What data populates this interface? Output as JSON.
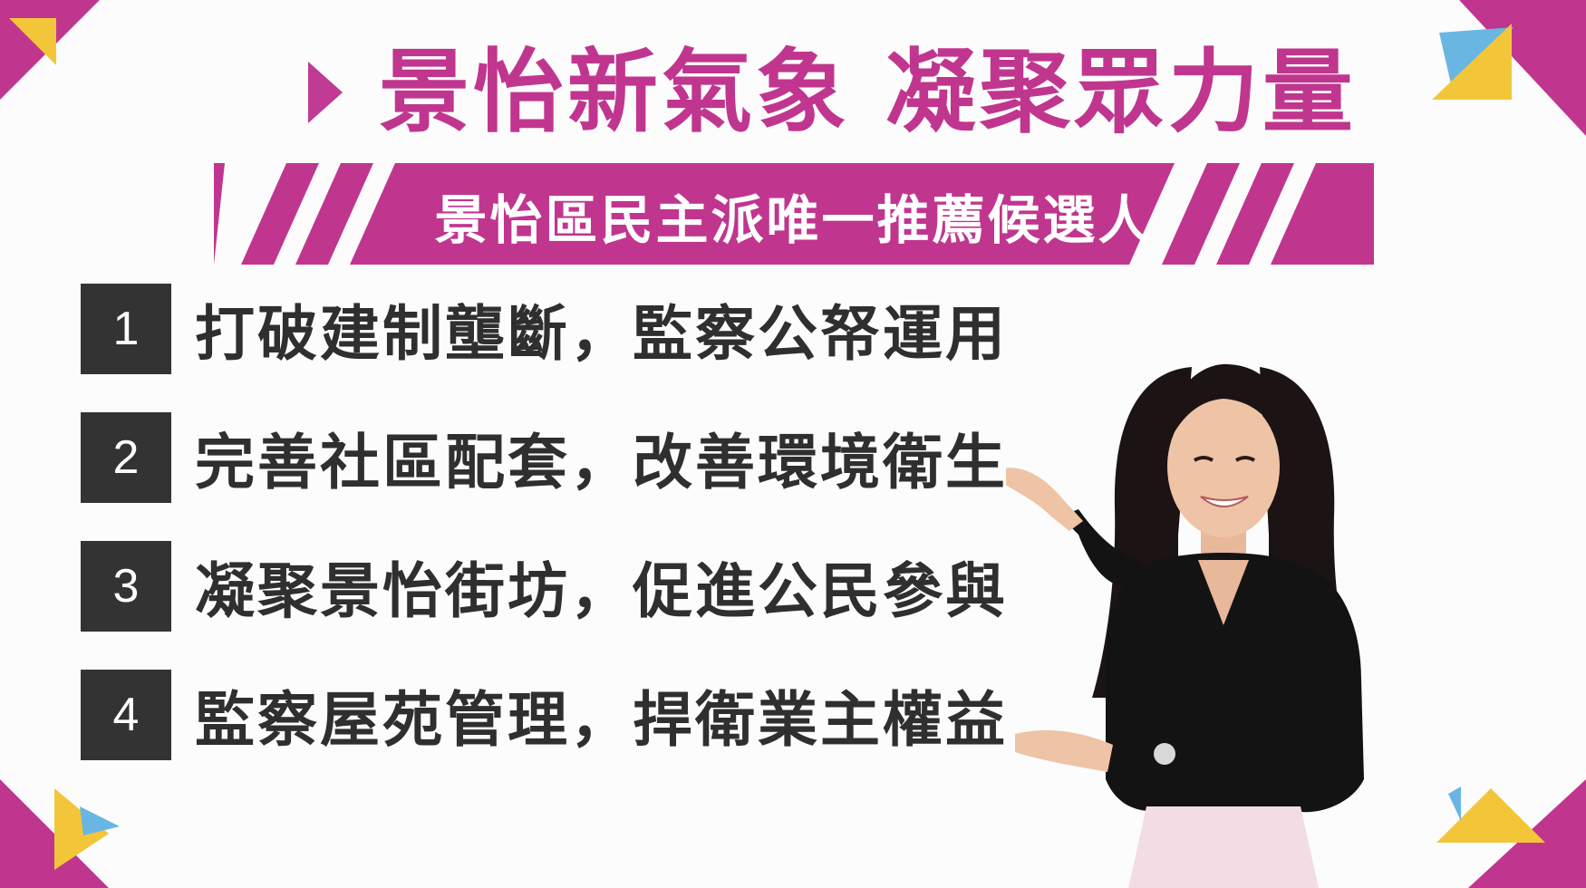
{
  "headline": "景怡新氣象 凝聚眾力量",
  "banner": "景怡區民主派唯一推薦候選人",
  "platform": [
    {
      "number": "1",
      "text": "打破建制壟斷，監察公帑運用"
    },
    {
      "number": "2",
      "text": "完善社區配套，改善環境衛生"
    },
    {
      "number": "3",
      "text": "凝聚景怡街坊，促進公民參與"
    },
    {
      "number": "4",
      "text": "監察屋苑管理，捍衛業主權益"
    }
  ],
  "colors": {
    "brand_magenta": "#c0368f",
    "accent_yellow": "#f3c63a",
    "accent_blue": "#6ab6e3",
    "number_box": "#333333",
    "text_dark": "#2f2f2f"
  },
  "icons": {
    "title_marker": "triangle-arrow-icon",
    "corner_decor": "triangle-corner-decor",
    "banner_decor": "diagonal-stripes"
  }
}
